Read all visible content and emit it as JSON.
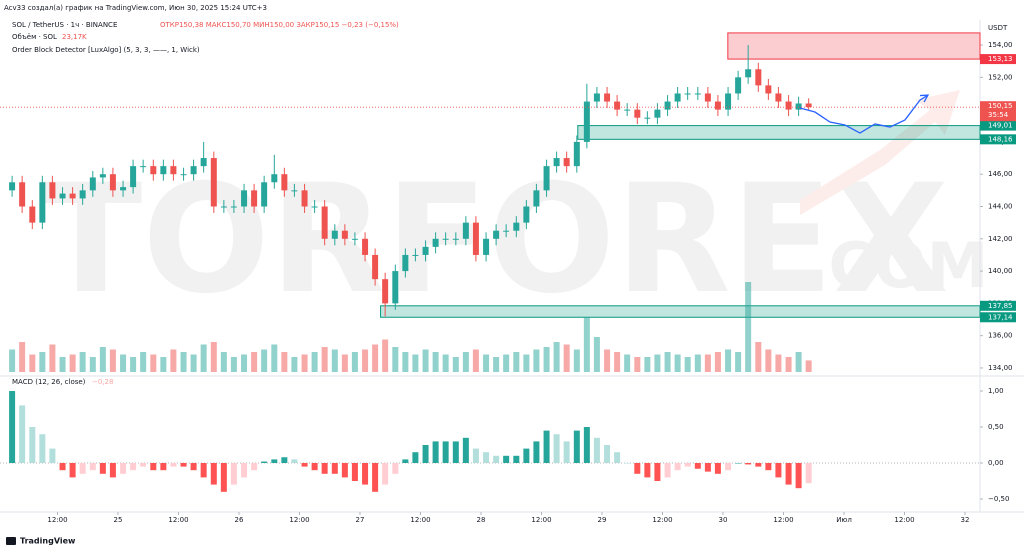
{
  "header": {
    "author_line": "Acv33 создал(а) график на TradingView.com, Июн 30, 2025 15:24 UTC+3",
    "symbol": "SOL / TetherUS · 1ч · BINANCE",
    "ohlc_text": "ОТКР150,38  МАКС150,70  МИН150,00  ЗАКР150,15  −0,23 (−0,15%)",
    "volume_legend": "Объём · SOL",
    "volume_last": "23,17K",
    "indicator": "Order Block Detector [LuxAlgo] (5, 3, 3, ——, 1, Wick)",
    "currency": "USDT"
  },
  "watermark": [
    "TORFOREX",
    ".COM"
  ],
  "footer": "TradingView",
  "chart_data": [
    {
      "type": "candlestick",
      "up_color": "#26a69a",
      "down_color": "#ef5350",
      "x": [
        24.125,
        24.208,
        24.292,
        24.375,
        24.458,
        24.542,
        24.625,
        24.708,
        24.792,
        24.875,
        24.958,
        25.042,
        25.125,
        25.208,
        25.292,
        25.375,
        25.458,
        25.542,
        25.625,
        25.708,
        25.792,
        25.875,
        25.958,
        26.042,
        26.125,
        26.208,
        26.292,
        26.375,
        26.458,
        26.542,
        26.625,
        26.708,
        26.792,
        26.875,
        26.958,
        27.042,
        27.125,
        27.208,
        27.292,
        27.375,
        27.458,
        27.542,
        27.625,
        27.708,
        27.792,
        27.875,
        27.958,
        28.042,
        28.125,
        28.208,
        28.292,
        28.375,
        28.458,
        28.542,
        28.625,
        28.708,
        28.792,
        28.875,
        28.958,
        29.042,
        29.125,
        29.208,
        29.292,
        29.375,
        29.458,
        29.542,
        29.625,
        29.708,
        29.792,
        29.875,
        29.958,
        30.042,
        30.125,
        30.208,
        30.292,
        30.375,
        30.458,
        30.542,
        30.625,
        30.708
      ],
      "open": [
        145.0,
        145.5,
        144,
        143,
        145.5,
        144.5,
        144.8,
        144.5,
        145,
        145.8,
        146,
        145,
        145.2,
        146.5,
        146.5,
        146,
        146.5,
        146,
        146,
        146.5,
        147,
        144,
        144,
        144,
        145,
        144,
        145.5,
        146,
        145,
        145,
        144,
        144,
        142,
        142.5,
        142,
        142,
        141,
        139.5,
        138,
        140,
        141,
        141,
        141.5,
        142,
        142,
        142,
        143,
        141,
        142,
        142.5,
        142.5,
        143,
        144,
        145,
        146.5,
        147,
        146.5,
        148,
        150.5,
        151,
        150.5,
        150,
        150,
        149.5,
        149.5,
        150,
        150.5,
        151,
        151,
        151,
        150.5,
        150,
        151,
        152,
        152.5,
        151.5,
        151,
        150.5,
        150,
        150.38
      ],
      "high": [
        145.9,
        145.9,
        144.4,
        145.9,
        145.9,
        145.2,
        145.2,
        145.4,
        146.2,
        146.4,
        146.4,
        145.6,
        146.9,
        146.9,
        146.9,
        146.9,
        146.9,
        146.4,
        146.9,
        148.0,
        147.4,
        144.4,
        144.4,
        145.4,
        145.4,
        145.9,
        147.2,
        146.4,
        145.4,
        145.4,
        144.4,
        144.4,
        142.9,
        142.9,
        142.4,
        142.4,
        141.4,
        139.9,
        140.4,
        141.4,
        141.4,
        141.9,
        142.4,
        142.4,
        142.4,
        143.4,
        143.4,
        142.4,
        142.9,
        142.9,
        143.4,
        144.4,
        145.4,
        146.9,
        147.4,
        147.4,
        148.4,
        151.6,
        151.4,
        151.4,
        150.9,
        150.4,
        150.4,
        149.9,
        150.4,
        150.9,
        151.4,
        151.4,
        151.4,
        151.4,
        150.9,
        151.4,
        152.4,
        154.0,
        152.9,
        151.9,
        151.4,
        150.9,
        150.8,
        150.7
      ],
      "low": [
        144.6,
        143.6,
        142.6,
        142.6,
        144.1,
        144.1,
        144.1,
        144.1,
        144.6,
        145.4,
        144.6,
        144.6,
        144.8,
        146.1,
        145.6,
        145.6,
        145.6,
        145.6,
        145.6,
        146.1,
        143.6,
        143.6,
        143.6,
        143.6,
        143.6,
        143.6,
        145.1,
        144.6,
        144.6,
        143.6,
        143.6,
        141.6,
        141.6,
        141.6,
        141.6,
        140.6,
        139.1,
        137.2,
        137.6,
        139.6,
        140.6,
        140.6,
        141.1,
        141.6,
        141.6,
        141.6,
        140.6,
        140.6,
        141.6,
        142.1,
        142.1,
        142.6,
        143.6,
        144.6,
        146.1,
        146.1,
        146.1,
        147.6,
        150.1,
        150.1,
        149.6,
        149.6,
        149.1,
        149.1,
        149.1,
        149.6,
        150.1,
        150.6,
        150.6,
        150.1,
        149.6,
        149.6,
        150.6,
        151.6,
        151.1,
        150.6,
        150.1,
        149.6,
        149.6,
        150.0
      ],
      "close": [
        145.5,
        144,
        143,
        145.5,
        144.5,
        144.8,
        144.5,
        145,
        145.8,
        146,
        145,
        145.2,
        146.5,
        146.5,
        146,
        146.5,
        146,
        146,
        146.5,
        147,
        144,
        144,
        144,
        145,
        144,
        145.5,
        146,
        145,
        145,
        144,
        144,
        142,
        142.5,
        142,
        142,
        141,
        139.5,
        138,
        140,
        141,
        141,
        141.5,
        142,
        142,
        142,
        143,
        141,
        142,
        142.5,
        142.5,
        143,
        144,
        145,
        146.5,
        147,
        146.5,
        148,
        150.5,
        151,
        150.5,
        150,
        150,
        149.5,
        149.5,
        150,
        150.5,
        151,
        151,
        151,
        150.5,
        150,
        151,
        152,
        152.5,
        151.5,
        151,
        150.5,
        150,
        150.38,
        150.15
      ],
      "xlim": [
        24.025,
        32.124
      ],
      "xticks": [
        {
          "value": 24.5,
          "label": "12:00"
        },
        25,
        {
          "value": 25.5,
          "label": "12:00"
        },
        26,
        {
          "value": 26.5,
          "label": "12:00"
        },
        27,
        {
          "value": 27.5,
          "label": "12:00"
        },
        28,
        {
          "value": 28.5,
          "label": "12:00"
        },
        29,
        {
          "value": 29.5,
          "label": "12:00"
        },
        30,
        {
          "value": 30.5,
          "label": "12:00"
        },
        {
          "value": 31,
          "label": "Июл"
        },
        {
          "value": 31.5,
          "label": "12:00"
        },
        32
      ],
      "ylim": [
        133.75,
        155.55
      ],
      "yticks": [
        {
          "value": 134,
          "label": "134,00"
        },
        {
          "value": 136,
          "label": "136,00"
        },
        {
          "value": 138,
          "label": "138,00"
        },
        {
          "value": 140,
          "label": "140,00"
        },
        {
          "value": 142,
          "label": "142,00"
        },
        {
          "value": 144,
          "label": "144,00"
        },
        {
          "value": 146,
          "label": "146,00"
        },
        {
          "value": 148,
          "label": "148,00"
        },
        {
          "value": 150,
          "label": "150,00"
        },
        {
          "value": 152,
          "label": "152,00"
        },
        {
          "value": 154,
          "label": "154,00"
        }
      ],
      "zones": [
        {
          "x_start": 30.04,
          "top": 154.75,
          "bottom": {
            "value": 153.13,
            "label": "153,13"
          },
          "color": "#f23645"
        },
        {
          "x_start": 28.8,
          "top": {
            "value": 149.01,
            "label": "149,01"
          },
          "bottom": {
            "value": 148.16,
            "label": "148,16"
          },
          "color": "#089981"
        },
        {
          "x_start": 27.17,
          "top": {
            "value": 137.85,
            "label": "137,85"
          },
          "bottom": {
            "value": 137.14,
            "label": "137,14"
          },
          "color": "#089981"
        }
      ],
      "last_price": {
        "value": 150.15,
        "label": "150,15"
      },
      "countdown": "35:54",
      "forecast": {
        "color": "#2962ff",
        "x": [
          30.636,
          30.76,
          30.884,
          31.008,
          31.132,
          31.256,
          31.38,
          31.504,
          31.628,
          31.694
        ],
        "y": [
          150.1,
          149.85,
          149.23,
          149.05,
          148.55,
          149.11,
          148.92,
          149.36,
          150.59,
          150.9
        ]
      }
    },
    {
      "type": "volume",
      "values": [
        45,
        60,
        35,
        40,
        55,
        30,
        35,
        40,
        30,
        50,
        45,
        35,
        30,
        40,
        35,
        30,
        45,
        40,
        35,
        55,
        60,
        40,
        30,
        35,
        40,
        45,
        55,
        40,
        30,
        35,
        40,
        50,
        45,
        35,
        40,
        45,
        55,
        65,
        50,
        40,
        35,
        45,
        40,
        35,
        30,
        40,
        45,
        35,
        30,
        35,
        40,
        35,
        45,
        50,
        60,
        55,
        45,
        110,
        70,
        45,
        40,
        35,
        30,
        30,
        35,
        40,
        35,
        30,
        35,
        35,
        40,
        45,
        40,
        180,
        60,
        45,
        35,
        30,
        40,
        23.17
      ]
    },
    {
      "type": "macd",
      "title": "MACD (12, 26, close)",
      "last_label": "−0,28",
      "colors": {
        "pos_up": "#26a69a",
        "pos_down": "#b2dfdb",
        "neg_down": "#ff5252",
        "neg_up": "#ffcdd2"
      },
      "values": [
        1.0,
        0.8,
        0.5,
        0.4,
        0.2,
        -0.1,
        -0.2,
        -0.15,
        -0.1,
        -0.15,
        -0.2,
        -0.15,
        -0.1,
        -0.05,
        -0.1,
        -0.1,
        -0.05,
        -0.05,
        -0.1,
        -0.2,
        -0.3,
        -0.4,
        -0.3,
        -0.2,
        -0.1,
        0.02,
        0.05,
        0.08,
        0.05,
        -0.05,
        -0.1,
        -0.15,
        -0.15,
        -0.2,
        -0.25,
        -0.3,
        -0.4,
        -0.3,
        -0.15,
        0.05,
        0.15,
        0.25,
        0.3,
        0.3,
        0.3,
        0.35,
        0.2,
        0.15,
        0.1,
        0.1,
        0.1,
        0.2,
        0.3,
        0.45,
        0.4,
        0.3,
        0.45,
        0.5,
        0.35,
        0.25,
        0.15,
        0.0,
        -0.15,
        -0.2,
        -0.25,
        -0.2,
        -0.1,
        -0.05,
        -0.08,
        -0.12,
        -0.15,
        -0.1,
        0.0,
        -0.02,
        -0.05,
        -0.1,
        -0.2,
        -0.3,
        -0.35,
        -0.28
      ],
      "ylim": [
        -0.653,
        1.153
      ],
      "yticks": [
        {
          "value": 1,
          "label": "1,00"
        },
        {
          "value": 0.5,
          "label": "0,50"
        },
        {
          "value": 0,
          "label": "0,00"
        },
        {
          "value": -0.5,
          "label": "−0,50"
        }
      ]
    }
  ]
}
